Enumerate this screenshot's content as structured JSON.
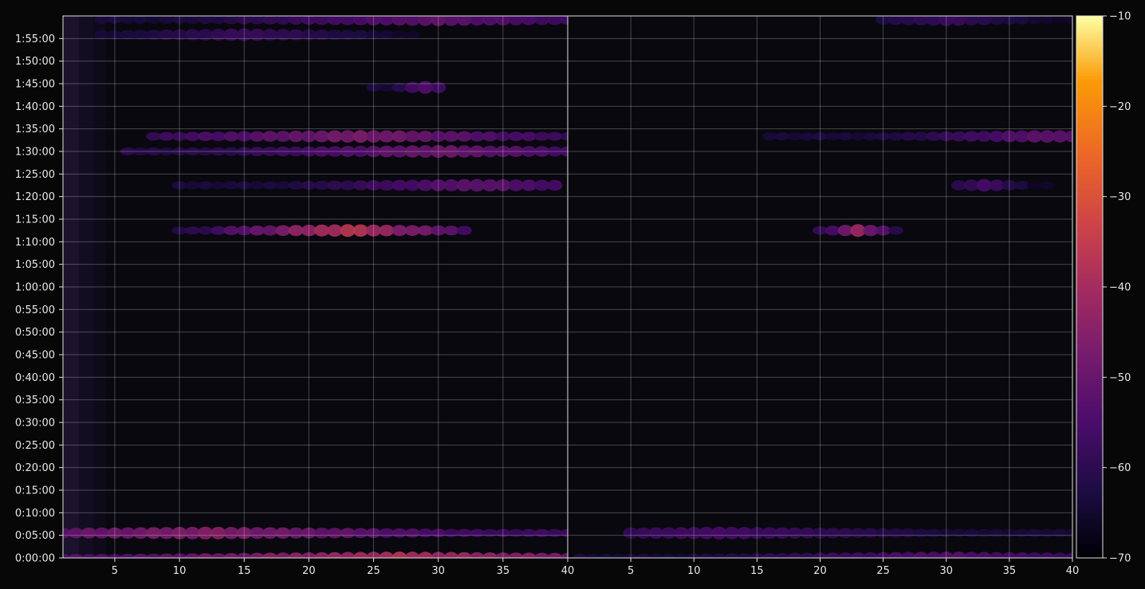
{
  "chart_data": {
    "type": "heatmap",
    "title": "",
    "xlabel": "",
    "ylabel": "",
    "panels": [
      {
        "name": "left",
        "xlim": [
          1,
          40
        ]
      },
      {
        "name": "right",
        "xlim": [
          0,
          40
        ]
      }
    ],
    "ylim_seconds": [
      0,
      7200
    ],
    "x_ticks_left": [
      "5",
      "10",
      "15",
      "20",
      "25",
      "30",
      "35",
      "40"
    ],
    "x_ticks_right": [
      "5",
      "10",
      "15",
      "20",
      "25",
      "30",
      "35",
      "40"
    ],
    "y_ticks": [
      "0:00:00",
      "0:05:00",
      "0:10:00",
      "0:15:00",
      "0:20:00",
      "0:25:00",
      "0:30:00",
      "0:35:00",
      "0:40:00",
      "0:45:00",
      "0:50:00",
      "0:55:00",
      "1:00:00",
      "1:05:00",
      "1:10:00",
      "1:15:00",
      "1:20:00",
      "1:25:00",
      "1:30:00",
      "1:35:00",
      "1:40:00",
      "1:45:00",
      "1:50:00",
      "1:55:00"
    ],
    "grid": true,
    "colorbar": {
      "colormap": "inferno",
      "range": [
        -70,
        -10
      ],
      "ticks": [
        "−10",
        "−20",
        "−30",
        "−40",
        "−50",
        "−60",
        "−70"
      ]
    },
    "series": [
      {
        "panel": "left",
        "time_s": 0,
        "x_range": [
          1,
          40
        ],
        "level_db": [
          -55,
          -44,
          -40
        ],
        "peak_x": 27
      },
      {
        "panel": "left",
        "time_s": 330,
        "x_range": [
          1,
          40
        ],
        "level_db": [
          -58,
          -50,
          -46
        ],
        "peak_x": 12
      },
      {
        "panel": "left",
        "time_s": 4350,
        "x_range": [
          10,
          32
        ],
        "level_db": [
          -62,
          -50,
          -38
        ],
        "peak_x": 23
      },
      {
        "panel": "left",
        "time_s": 4950,
        "x_range": [
          10,
          39
        ],
        "level_db": [
          -64,
          -58,
          -52
        ],
        "peak_x": 33
      },
      {
        "panel": "left",
        "time_s": 5400,
        "x_range": [
          6,
          40
        ],
        "level_db": [
          -62,
          -55,
          -50
        ],
        "peak_x": 30
      },
      {
        "panel": "left",
        "time_s": 5600,
        "x_range": [
          8,
          40
        ],
        "level_db": [
          -60,
          -52,
          -48
        ],
        "peak_x": 24
      },
      {
        "panel": "left",
        "time_s": 6250,
        "x_range": [
          25,
          30
        ],
        "level_db": [
          -64,
          -58,
          -54
        ],
        "peak_x": 29
      },
      {
        "panel": "left",
        "time_s": 6950,
        "x_range": [
          4,
          28
        ],
        "level_db": [
          -66,
          -62,
          -58
        ],
        "peak_x": 15
      },
      {
        "panel": "left",
        "time_s": 7150,
        "x_range": [
          4,
          40
        ],
        "level_db": [
          -64,
          -58,
          -52
        ],
        "peak_x": 30
      },
      {
        "panel": "right",
        "time_s": 0,
        "x_range": [
          1,
          40
        ],
        "level_db": [
          -64,
          -58,
          -54
        ],
        "peak_x": 30
      },
      {
        "panel": "right",
        "time_s": 330,
        "x_range": [
          5,
          40
        ],
        "level_db": [
          -64,
          -60,
          -56
        ],
        "peak_x": 12
      },
      {
        "panel": "right",
        "time_s": 4350,
        "x_range": [
          20,
          26
        ],
        "level_db": [
          -62,
          -52,
          -44
        ],
        "peak_x": 23
      },
      {
        "panel": "right",
        "time_s": 4950,
        "x_range": [
          31,
          38
        ],
        "level_db": [
          -66,
          -60,
          -56
        ],
        "peak_x": 33
      },
      {
        "panel": "right",
        "time_s": 5600,
        "x_range": [
          16,
          40
        ],
        "level_db": [
          -64,
          -58,
          -52
        ],
        "peak_x": 38
      },
      {
        "panel": "right",
        "time_s": 7150,
        "x_range": [
          25,
          40
        ],
        "level_db": [
          -66,
          -62,
          -58
        ],
        "peak_x": 30
      }
    ]
  }
}
